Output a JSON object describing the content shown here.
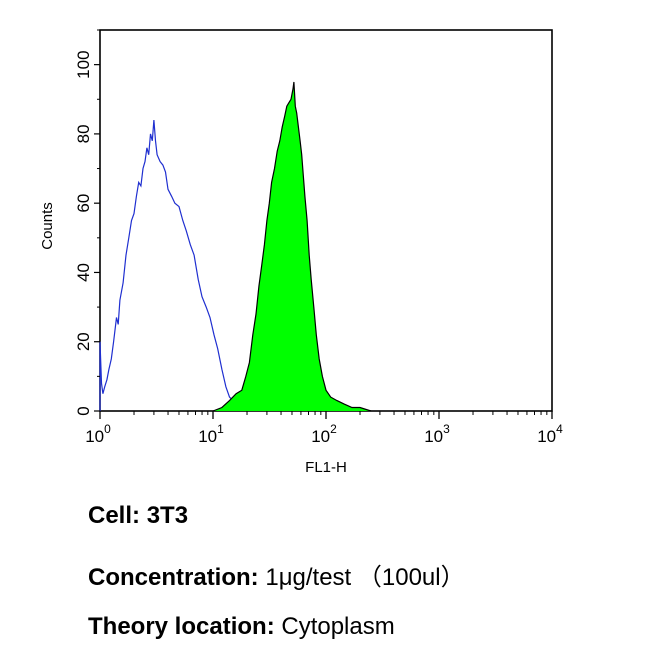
{
  "chart_data": {
    "type": "histogram",
    "xlabel": "FL1-H",
    "ylabel": "Counts",
    "x_scale": "log",
    "xlim": [
      1,
      10000
    ],
    "ylim": [
      0,
      110
    ],
    "x_ticks": [
      {
        "value": 1,
        "base": "10",
        "exp": "0"
      },
      {
        "value": 10,
        "base": "10",
        "exp": "1"
      },
      {
        "value": 100,
        "base": "10",
        "exp": "2"
      },
      {
        "value": 1000,
        "base": "10",
        "exp": "3"
      },
      {
        "value": 10000,
        "base": "10",
        "exp": "4"
      }
    ],
    "y_ticks": [
      0,
      20,
      40,
      60,
      80,
      100
    ],
    "series": [
      {
        "role": "control",
        "color": "#1f2fd0",
        "fill": "none",
        "points": [
          [
            1.0,
            0
          ],
          [
            1.0,
            20
          ],
          [
            1.03,
            8
          ],
          [
            1.06,
            5
          ],
          [
            1.1,
            7
          ],
          [
            1.15,
            9
          ],
          [
            1.2,
            12
          ],
          [
            1.26,
            15
          ],
          [
            1.32,
            20
          ],
          [
            1.4,
            27
          ],
          [
            1.45,
            25
          ],
          [
            1.5,
            32
          ],
          [
            1.6,
            37
          ],
          [
            1.7,
            45
          ],
          [
            1.8,
            50
          ],
          [
            1.9,
            55
          ],
          [
            2.0,
            57
          ],
          [
            2.1,
            62
          ],
          [
            2.2,
            66
          ],
          [
            2.3,
            65
          ],
          [
            2.4,
            70
          ],
          [
            2.5,
            72
          ],
          [
            2.6,
            76
          ],
          [
            2.7,
            74
          ],
          [
            2.8,
            80
          ],
          [
            2.9,
            78
          ],
          [
            3.0,
            84
          ],
          [
            3.1,
            78
          ],
          [
            3.2,
            74
          ],
          [
            3.4,
            72
          ],
          [
            3.6,
            71
          ],
          [
            3.8,
            69
          ],
          [
            4.0,
            64
          ],
          [
            4.3,
            62
          ],
          [
            4.6,
            60
          ],
          [
            5.0,
            59
          ],
          [
            5.4,
            55
          ],
          [
            5.8,
            52
          ],
          [
            6.3,
            48
          ],
          [
            6.8,
            45
          ],
          [
            7.4,
            38
          ],
          [
            8.0,
            33
          ],
          [
            8.7,
            30
          ],
          [
            9.4,
            27
          ],
          [
            10.2,
            22
          ],
          [
            11.0,
            18
          ],
          [
            12.0,
            12
          ],
          [
            13.0,
            7
          ],
          [
            14.0,
            4
          ],
          [
            15.0,
            3
          ]
        ]
      },
      {
        "role": "sample",
        "color": "#000000",
        "fill": "#00ff00",
        "points": [
          [
            10.0,
            0
          ],
          [
            12.0,
            1
          ],
          [
            14.0,
            3
          ],
          [
            16.0,
            5
          ],
          [
            18.0,
            6
          ],
          [
            19.5,
            10
          ],
          [
            21.0,
            14
          ],
          [
            22.5,
            22
          ],
          [
            24.0,
            28
          ],
          [
            25.5,
            36
          ],
          [
            27.0,
            42
          ],
          [
            28.5,
            48
          ],
          [
            30.0,
            55
          ],
          [
            31.5,
            60
          ],
          [
            33.0,
            66
          ],
          [
            35.0,
            70
          ],
          [
            37.0,
            75
          ],
          [
            39.0,
            78
          ],
          [
            41.0,
            82
          ],
          [
            43.0,
            85
          ],
          [
            45.0,
            88
          ],
          [
            47.0,
            89
          ],
          [
            49.0,
            90
          ],
          [
            51.0,
            93
          ],
          [
            52.0,
            95
          ],
          [
            53.5,
            88
          ],
          [
            55.0,
            86
          ],
          [
            57.0,
            82
          ],
          [
            59.0,
            78
          ],
          [
            61.0,
            74
          ],
          [
            63.0,
            68
          ],
          [
            65.0,
            62
          ],
          [
            68.0,
            55
          ],
          [
            71.0,
            45
          ],
          [
            74.0,
            38
          ],
          [
            78.0,
            30
          ],
          [
            82.0,
            22
          ],
          [
            87.0,
            15
          ],
          [
            93.0,
            10
          ],
          [
            100.0,
            6
          ],
          [
            110.0,
            4
          ],
          [
            125.0,
            3
          ],
          [
            145.0,
            2
          ],
          [
            170.0,
            1
          ],
          [
            200.0,
            1
          ],
          [
            250.0,
            0
          ]
        ]
      }
    ]
  },
  "caption": {
    "cell": {
      "label": "Cell:",
      "value": "3T3"
    },
    "concentration": {
      "label": "Concentration:",
      "value": "1μg/test （100ul）"
    },
    "theory": {
      "label": "Theory location:",
      "value": "Cytoplasm"
    }
  }
}
